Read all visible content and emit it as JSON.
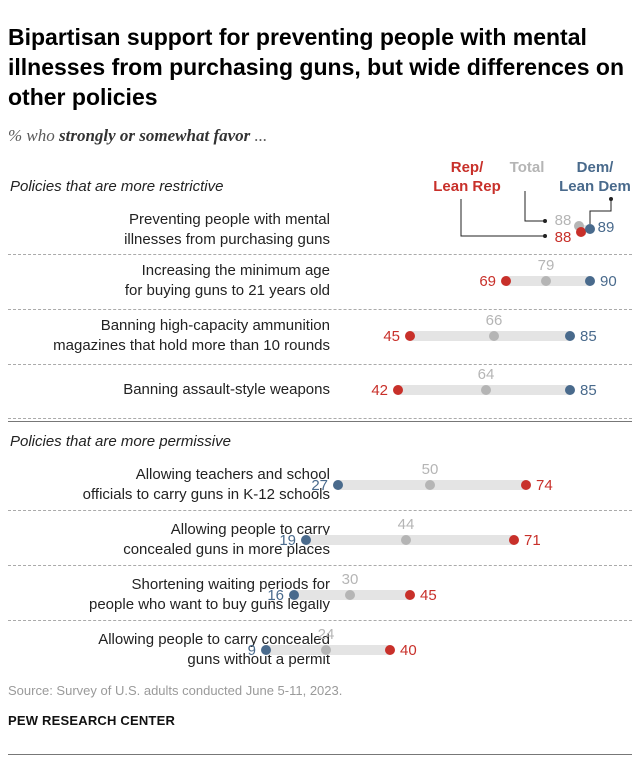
{
  "title": "Bipartisan support for preventing people with mental illnesses from purchasing guns, but wide differences on other policies",
  "subtitle_prefix": "% who",
  "subtitle_emph": "strongly or somewhat favor",
  "subtitle_suffix": "...",
  "legend": {
    "rep_line1": "Rep/",
    "rep_line2": "Lean Rep",
    "total": "Total",
    "dem_line1": "Dem/",
    "dem_line2": "Lean Dem"
  },
  "colors": {
    "rep": "#c8302a",
    "total": "#b5b5b5",
    "dem": "#496a8c",
    "track": "#e4e4e4"
  },
  "chart_data": {
    "type": "dot",
    "series": [
      {
        "name": "Rep/Lean Rep",
        "key": "rep"
      },
      {
        "name": "Total",
        "key": "total"
      },
      {
        "name": "Dem/Lean Dem",
        "key": "dem"
      }
    ],
    "sections": [
      {
        "title": "Policies that are more restrictive",
        "items": [
          {
            "label_lines": [
              "Preventing people with mental",
              "illnesses from purchasing guns"
            ],
            "rep": 88,
            "total": 88,
            "dem": 89
          },
          {
            "label_lines": [
              "Increasing the minimum age",
              "for buying guns to 21 years old"
            ],
            "rep": 69,
            "total": 79,
            "dem": 90
          },
          {
            "label_lines": [
              "Banning high-capacity ammunition",
              "magazines that hold more than 10 rounds"
            ],
            "rep": 45,
            "total": 66,
            "dem": 85
          },
          {
            "label_lines": [
              "Banning assault-style weapons"
            ],
            "rep": 42,
            "total": 64,
            "dem": 85
          }
        ]
      },
      {
        "title": "Policies that are more permissive",
        "items": [
          {
            "label_lines": [
              "Allowing teachers and school",
              "officials to carry guns in K-12 schools"
            ],
            "rep": 74,
            "total": 50,
            "dem": 27
          },
          {
            "label_lines": [
              "Allowing people to carry",
              "concealed guns in more places"
            ],
            "rep": 71,
            "total": 44,
            "dem": 19
          },
          {
            "label_lines": [
              "Shortening waiting periods for",
              "people who want to buy guns legally"
            ],
            "rep": 45,
            "total": 30,
            "dem": 16
          },
          {
            "label_lines": [
              "Allowing people to carry concealed",
              "guns without a permit"
            ],
            "rep": 40,
            "total": 24,
            "dem": 9
          }
        ]
      }
    ]
  },
  "source": "Source: Survey of U.S. adults conducted June 5-11, 2023.",
  "org": "PEW RESEARCH CENTER"
}
